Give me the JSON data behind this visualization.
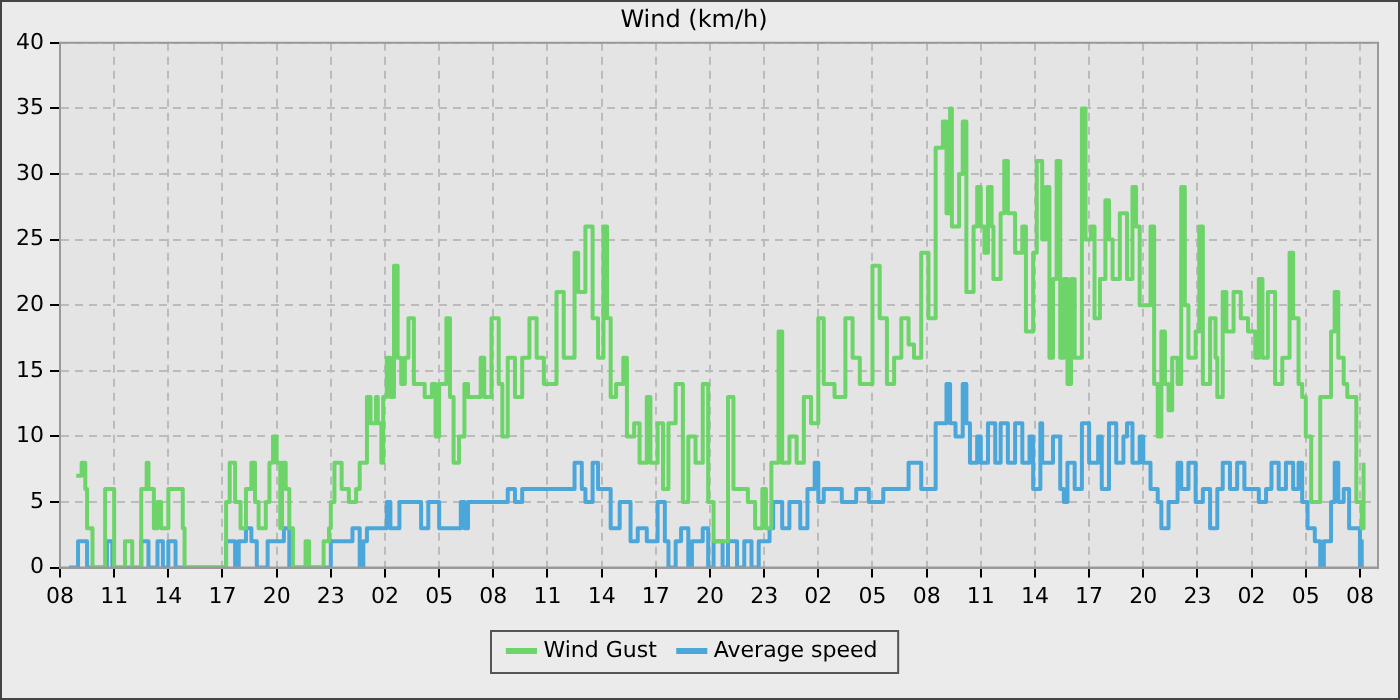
{
  "chart_data": {
    "type": "step",
    "title": "Wind (km/h)",
    "legend": "bottom",
    "grid": true,
    "marker": "none",
    "line_style": "solid",
    "xlim": [
      "--01-01T08:00",
      "--01-04T09:00"
    ],
    "ylim": [
      0,
      40
    ],
    "yticks": [
      0,
      5,
      10,
      15,
      20,
      25,
      30,
      35,
      40
    ],
    "xticks": [
      {
        "value": "--01-01T08:00",
        "label": "08"
      },
      {
        "value": "--01-01T11:00",
        "label": "11"
      },
      {
        "value": "--01-01T14:00",
        "label": "14"
      },
      {
        "value": "--01-01T17:00",
        "label": "17"
      },
      {
        "value": "--01-01T20:00",
        "label": "20"
      },
      {
        "value": "--01-01T23:00",
        "label": "23"
      },
      {
        "value": "--01-02T02:00",
        "label": "02"
      },
      {
        "value": "--01-02T05:00",
        "label": "05"
      },
      {
        "value": "--01-02T08:00",
        "label": "08"
      },
      {
        "value": "--01-02T11:00",
        "label": "11"
      },
      {
        "value": "--01-02T14:00",
        "label": "14"
      },
      {
        "value": "--01-02T17:00",
        "label": "17"
      },
      {
        "value": "--01-02T20:00",
        "label": "20"
      },
      {
        "value": "--01-02T23:00",
        "label": "23"
      },
      {
        "value": "--01-03T02:00",
        "label": "02"
      },
      {
        "value": "--01-03T05:00",
        "label": "05"
      },
      {
        "value": "--01-03T08:00",
        "label": "08"
      },
      {
        "value": "--01-03T11:00",
        "label": "11"
      },
      {
        "value": "--01-03T14:00",
        "label": "14"
      },
      {
        "value": "--01-03T17:00",
        "label": "17"
      },
      {
        "value": "--01-03T20:00",
        "label": "20"
      },
      {
        "value": "--01-03T23:00",
        "label": "23"
      },
      {
        "value": "--01-04T02:00",
        "label": "02"
      },
      {
        "value": "--01-04T05:00",
        "label": "05"
      },
      {
        "value": "--01-04T08:00",
        "label": "08"
      }
    ],
    "series": [
      {
        "name": "Wind Gust",
        "color": "#6dd46a",
        "x": [
          "--01-01T08:54",
          "--01-01T09:12",
          "--01-01T09:24",
          "--01-01T09:30",
          "--01-01T09:48",
          "--01-01T10:30",
          "--01-01T11:00",
          "--01-01T11:36",
          "--01-01T12:00",
          "--01-01T12:30",
          "--01-01T12:48",
          "--01-01T12:54",
          "--01-01T13:12",
          "--01-01T13:24",
          "--01-01T13:36",
          "--01-01T14:00",
          "--01-01T14:48",
          "--01-01T14:54",
          "--01-01T17:12",
          "--01-01T17:24",
          "--01-01T17:42",
          "--01-01T18:00",
          "--01-01T18:18",
          "--01-01T18:36",
          "--01-01T18:48",
          "--01-01T19:00",
          "--01-01T19:24",
          "--01-01T19:36",
          "--01-01T19:48",
          "--01-01T20:00",
          "--01-01T20:12",
          "--01-01T20:18",
          "--01-01T20:30",
          "--01-01T20:42",
          "--01-01T20:54",
          "--01-01T21:36",
          "--01-01T21:48",
          "--01-01T22:36",
          "--01-01T22:54",
          "--01-01T23:00",
          "--01-01T23:12",
          "--01-01T23:36",
          "--01-02T00:00",
          "--01-02T00:24",
          "--01-02T00:36",
          "--01-02T01:00",
          "--01-02T01:12",
          "--01-02T01:30",
          "--01-02T01:36",
          "--01-02T01:48",
          "--01-02T01:54",
          "--01-02T02:06",
          "--01-02T02:18",
          "--01-02T02:30",
          "--01-02T02:42",
          "--01-02T02:54",
          "--01-02T03:06",
          "--01-02T03:18",
          "--01-02T03:36",
          "--01-02T04:12",
          "--01-02T04:36",
          "--01-02T04:48",
          "--01-02T05:00",
          "--01-02T05:24",
          "--01-02T05:36",
          "--01-02T05:48",
          "--01-02T06:06",
          "--01-02T06:24",
          "--01-02T06:36",
          "--01-02T07:18",
          "--01-02T07:30",
          "--01-02T07:54",
          "--01-02T08:18",
          "--01-02T08:30",
          "--01-02T08:48",
          "--01-02T09:12",
          "--01-02T09:36",
          "--01-02T10:00",
          "--01-02T10:24",
          "--01-02T10:48",
          "--01-02T11:30",
          "--01-02T11:54",
          "--01-02T12:30",
          "--01-02T12:42",
          "--01-02T13:06",
          "--01-02T13:30",
          "--01-02T13:48",
          "--01-02T14:06",
          "--01-02T14:18",
          "--01-02T14:30",
          "--01-02T14:48",
          "--01-02T15:12",
          "--01-02T15:24",
          "--01-02T15:48",
          "--01-02T16:06",
          "--01-02T16:30",
          "--01-02T16:42",
          "--01-02T17:06",
          "--01-02T17:24",
          "--01-02T17:42",
          "--01-02T18:06",
          "--01-02T18:30",
          "--01-02T18:48",
          "--01-02T19:12",
          "--01-02T19:36",
          "--01-02T19:54",
          "--01-02T20:12",
          "--01-02T21:00",
          "--01-02T21:18",
          "--01-02T22:06",
          "--01-02T22:30",
          "--01-02T22:54",
          "--01-02T23:06",
          "--01-02T23:24",
          "--01-02T23:48",
          "--01-03T00:00",
          "--01-03T00:24",
          "--01-03T00:48",
          "--01-03T01:12",
          "--01-03T01:36",
          "--01-03T02:00",
          "--01-03T02:18",
          "--01-03T02:54",
          "--01-03T03:30",
          "--01-03T03:54",
          "--01-03T04:18",
          "--01-03T05:00",
          "--01-03T05:24",
          "--01-03T05:48",
          "--01-03T06:12",
          "--01-03T06:36",
          "--01-03T07:00",
          "--01-03T07:18",
          "--01-03T07:42",
          "--01-03T08:06",
          "--01-03T08:30",
          "--01-03T08:54",
          "--01-03T09:06",
          "--01-03T09:18",
          "--01-03T09:24",
          "--01-03T09:48",
          "--01-03T10:00",
          "--01-03T10:12",
          "--01-03T10:36",
          "--01-03T10:48",
          "--01-03T11:00",
          "--01-03T11:12",
          "--01-03T11:24",
          "--01-03T11:36",
          "--01-03T11:42",
          "--01-03T12:06",
          "--01-03T12:18",
          "--01-03T12:30",
          "--01-03T12:54",
          "--01-03T13:18",
          "--01-03T13:30",
          "--01-03T13:54",
          "--01-03T14:06",
          "--01-03T14:24",
          "--01-03T14:36",
          "--01-03T14:48",
          "--01-03T15:00",
          "--01-03T15:12",
          "--01-03T15:24",
          "--01-03T15:36",
          "--01-03T15:48",
          "--01-03T16:00",
          "--01-03T16:12",
          "--01-03T16:36",
          "--01-03T16:48",
          "--01-03T17:06",
          "--01-03T17:18",
          "--01-03T17:36",
          "--01-03T17:54",
          "--01-03T18:06",
          "--01-03T18:18",
          "--01-03T18:42",
          "--01-03T19:06",
          "--01-03T19:24",
          "--01-03T19:36",
          "--01-03T19:48",
          "--01-03T20:24",
          "--01-03T20:36",
          "--01-03T20:48",
          "--01-03T21:00",
          "--01-03T21:12",
          "--01-03T21:24",
          "--01-03T21:36",
          "--01-03T21:54",
          "--01-03T22:06",
          "--01-03T22:18",
          "--01-03T22:30",
          "--01-03T22:54",
          "--01-03T23:06",
          "--01-03T23:18",
          "--01-03T23:42",
          "--01-04T00:00",
          "--01-04T00:06",
          "--01-04T00:24",
          "--01-04T00:36",
          "--01-04T01:00",
          "--01-04T01:24",
          "--01-04T01:48",
          "--01-04T02:12",
          "--01-04T02:24",
          "--01-04T02:36",
          "--01-04T02:54",
          "--01-04T03:18",
          "--01-04T03:42",
          "--01-04T04:06",
          "--01-04T04:18",
          "--01-04T04:36",
          "--01-04T04:48",
          "--01-04T05:00",
          "--01-04T05:18",
          "--01-04T05:48",
          "--01-04T06:24",
          "--01-04T06:36",
          "--01-04T06:48",
          "--01-04T07:06",
          "--01-04T07:18",
          "--01-04T07:48",
          "--01-04T08:06",
          "--01-04T08:12"
        ],
        "values": [
          7,
          8,
          6,
          3,
          0,
          6,
          0,
          2,
          0,
          6,
          8,
          6,
          3,
          5,
          3,
          6,
          3,
          0,
          5,
          8,
          5,
          3,
          6,
          8,
          5,
          3,
          5,
          8,
          10,
          8,
          3,
          8,
          6,
          3,
          0,
          2,
          0,
          2,
          3,
          5,
          8,
          6,
          5,
          6,
          8,
          13,
          11,
          13,
          11,
          8,
          13,
          16,
          13,
          23,
          16,
          14,
          16,
          19,
          14,
          13,
          14,
          10,
          14,
          19,
          13,
          8,
          10,
          14,
          13,
          16,
          13,
          19,
          14,
          10,
          16,
          13,
          16,
          19,
          16,
          14,
          21,
          16,
          24,
          21,
          26,
          19,
          16,
          26,
          19,
          13,
          14,
          16,
          10,
          11,
          8,
          13,
          8,
          11,
          6,
          11,
          14,
          5,
          10,
          8,
          14,
          5,
          2,
          13,
          6,
          5,
          3,
          6,
          3,
          8,
          18,
          8,
          10,
          8,
          13,
          11,
          19,
          14,
          13,
          19,
          16,
          14,
          23,
          19,
          14,
          16,
          19,
          17,
          16,
          24,
          19,
          32,
          34,
          27,
          35,
          26,
          30,
          34,
          21,
          26,
          29,
          26,
          24,
          29,
          26,
          22,
          27,
          31,
          27,
          24,
          26,
          18,
          24,
          31,
          25,
          29,
          16,
          22,
          31,
          16,
          22,
          14,
          22,
          16,
          35,
          25,
          26,
          19,
          22,
          28,
          25,
          22,
          27,
          22,
          29,
          26,
          20,
          26,
          14,
          10,
          18,
          14,
          12,
          16,
          14,
          29,
          20,
          16,
          18,
          26,
          14,
          19,
          16,
          13,
          21,
          18,
          21,
          19,
          18,
          16,
          22,
          16,
          21,
          14,
          16,
          24,
          19,
          14,
          13,
          10,
          5,
          13,
          18,
          21,
          16,
          14,
          13,
          5,
          3,
          8
        ]
      },
      {
        "name": "Average speed",
        "color": "#4ba7da",
        "x": [
          "--01-01T08:30",
          "--01-01T09:00",
          "--01-01T09:30",
          "--01-01T10:36",
          "--01-01T10:54",
          "--01-01T12:30",
          "--01-01T12:54",
          "--01-01T13:24",
          "--01-01T13:42",
          "--01-01T14:00",
          "--01-01T14:24",
          "--01-01T17:12",
          "--01-01T17:42",
          "--01-01T17:54",
          "--01-01T18:18",
          "--01-01T18:36",
          "--01-01T18:54",
          "--01-01T19:30",
          "--01-01T20:24",
          "--01-01T20:42",
          "--01-01T23:00",
          "--01-02T00:12",
          "--01-02T00:36",
          "--01-02T00:48",
          "--01-02T01:00",
          "--01-02T02:06",
          "--01-02T02:18",
          "--01-02T02:48",
          "--01-02T04:00",
          "--01-02T04:24",
          "--01-02T05:00",
          "--01-02T06:12",
          "--01-02T06:24",
          "--01-02T06:36",
          "--01-02T08:48",
          "--01-02T09:12",
          "--01-02T09:36",
          "--01-02T12:30",
          "--01-02T12:54",
          "--01-02T13:06",
          "--01-02T13:30",
          "--01-02T13:48",
          "--01-02T14:30",
          "--01-02T15:00",
          "--01-02T15:36",
          "--01-02T16:00",
          "--01-02T16:30",
          "--01-02T17:06",
          "--01-02T17:30",
          "--01-02T17:42",
          "--01-02T18:06",
          "--01-02T18:24",
          "--01-02T18:48",
          "--01-02T19:00",
          "--01-02T19:36",
          "--01-02T19:54",
          "--01-02T20:12",
          "--01-02T20:42",
          "--01-02T21:00",
          "--01-02T21:30",
          "--01-02T21:54",
          "--01-02T22:18",
          "--01-02T22:42",
          "--01-02T23:18",
          "--01-02T23:30",
          "--01-03T00:00",
          "--01-03T00:24",
          "--01-03T01:00",
          "--01-03T01:24",
          "--01-03T01:48",
          "--01-03T02:00",
          "--01-03T02:18",
          "--01-03T03:18",
          "--01-03T04:06",
          "--01-03T04:48",
          "--01-03T05:36",
          "--01-03T07:00",
          "--01-03T07:42",
          "--01-03T08:30",
          "--01-03T09:06",
          "--01-03T09:18",
          "--01-03T09:36",
          "--01-03T10:00",
          "--01-03T10:12",
          "--01-03T10:24",
          "--01-03T10:48",
          "--01-03T11:00",
          "--01-03T11:24",
          "--01-03T11:48",
          "--01-03T12:06",
          "--01-03T12:30",
          "--01-03T12:54",
          "--01-03T13:18",
          "--01-03T13:42",
          "--01-03T13:54",
          "--01-03T14:18",
          "--01-03T14:24",
          "--01-03T15:00",
          "--01-03T15:24",
          "--01-03T15:36",
          "--01-03T15:48",
          "--01-03T16:12",
          "--01-03T16:36",
          "--01-03T17:00",
          "--01-03T17:30",
          "--01-03T17:42",
          "--01-03T18:06",
          "--01-03T18:30",
          "--01-03T18:54",
          "--01-03T19:06",
          "--01-03T19:24",
          "--01-03T19:48",
          "--01-03T20:00",
          "--01-03T20:24",
          "--01-03T20:48",
          "--01-03T21:00",
          "--01-03T21:24",
          "--01-03T21:54",
          "--01-03T22:06",
          "--01-03T22:30",
          "--01-03T22:54",
          "--01-03T23:18",
          "--01-03T23:42",
          "--01-04T00:06",
          "--01-04T00:24",
          "--01-04T00:48",
          "--01-04T01:12",
          "--01-04T01:36",
          "--01-04T02:24",
          "--01-04T02:48",
          "--01-04T03:06",
          "--01-04T03:30",
          "--01-04T03:54",
          "--01-04T04:18",
          "--01-04T04:36",
          "--01-04T04:48",
          "--01-04T05:06",
          "--01-04T05:30",
          "--01-04T05:48",
          "--01-04T06:00",
          "--01-04T06:24",
          "--01-04T06:36",
          "--01-04T06:48",
          "--01-04T07:06",
          "--01-04T07:24",
          "--01-04T08:00",
          "--01-04T08:06",
          "--01-04T08:12"
        ],
        "values": [
          0,
          2,
          0,
          2,
          0,
          2,
          0,
          2,
          0,
          2,
          0,
          2,
          0,
          2,
          3,
          2,
          0,
          2,
          3,
          0,
          2,
          3,
          0,
          2,
          3,
          5,
          3,
          5,
          3,
          5,
          3,
          5,
          3,
          5,
          6,
          5,
          6,
          8,
          6,
          5,
          8,
          6,
          3,
          5,
          2,
          3,
          2,
          5,
          2,
          0,
          2,
          3,
          0,
          2,
          3,
          0,
          2,
          0,
          2,
          0,
          2,
          0,
          2,
          3,
          5,
          3,
          5,
          3,
          6,
          8,
          5,
          6,
          5,
          6,
          5,
          6,
          8,
          6,
          11,
          14,
          11,
          10,
          14,
          11,
          8,
          10,
          8,
          11,
          8,
          11,
          8,
          11,
          8,
          10,
          6,
          11,
          8,
          10,
          6,
          5,
          8,
          6,
          11,
          8,
          10,
          6,
          11,
          8,
          10,
          11,
          8,
          10,
          8,
          6,
          5,
          3,
          5,
          8,
          6,
          8,
          5,
          6,
          3,
          6,
          8,
          6,
          8,
          6,
          5,
          6,
          8,
          6,
          8,
          6,
          8,
          5,
          3,
          2,
          0,
          2,
          5,
          8,
          5,
          6,
          3,
          0,
          2,
          2
        ]
      }
    ]
  }
}
